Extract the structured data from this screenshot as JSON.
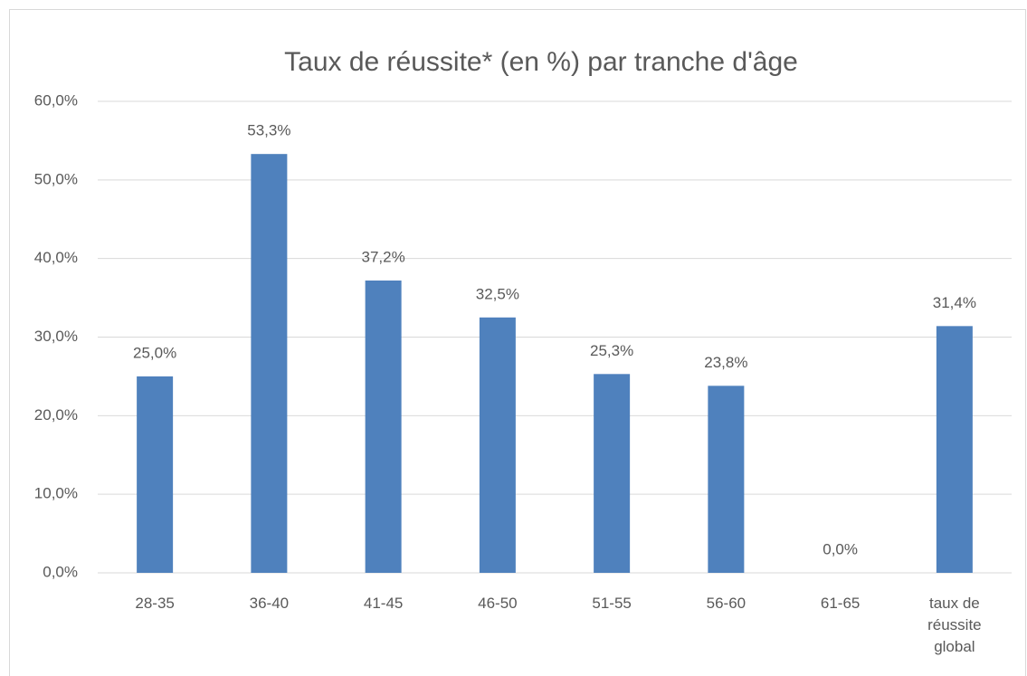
{
  "chart_data": {
    "type": "bar",
    "title": "Taux de réussite* (en %) par tranche d'âge",
    "categories": [
      "28-35",
      "36-40",
      "41-45",
      "46-50",
      "51-55",
      "56-60",
      "61-65",
      "taux de réussite global"
    ],
    "values": [
      25.0,
      53.3,
      37.2,
      32.5,
      25.3,
      23.8,
      0.0,
      31.4
    ],
    "value_labels": [
      "25,0%",
      "53,3%",
      "37,2%",
      "32,5%",
      "25,3%",
      "23,8%",
      "0,0%",
      "31,4%"
    ],
    "color": "#4f81bd",
    "ylim": [
      0,
      60
    ],
    "yticks": [
      {
        "value": 0,
        "label": "0,0%"
      },
      {
        "value": 10,
        "label": "10,0%"
      },
      {
        "value": 20,
        "label": "20,0%"
      },
      {
        "value": 30,
        "label": "30,0%"
      },
      {
        "value": 40,
        "label": "40,0%"
      },
      {
        "value": 50,
        "label": "50,0%"
      },
      {
        "value": 60,
        "label": "60,0%"
      }
    ],
    "grid": true
  }
}
